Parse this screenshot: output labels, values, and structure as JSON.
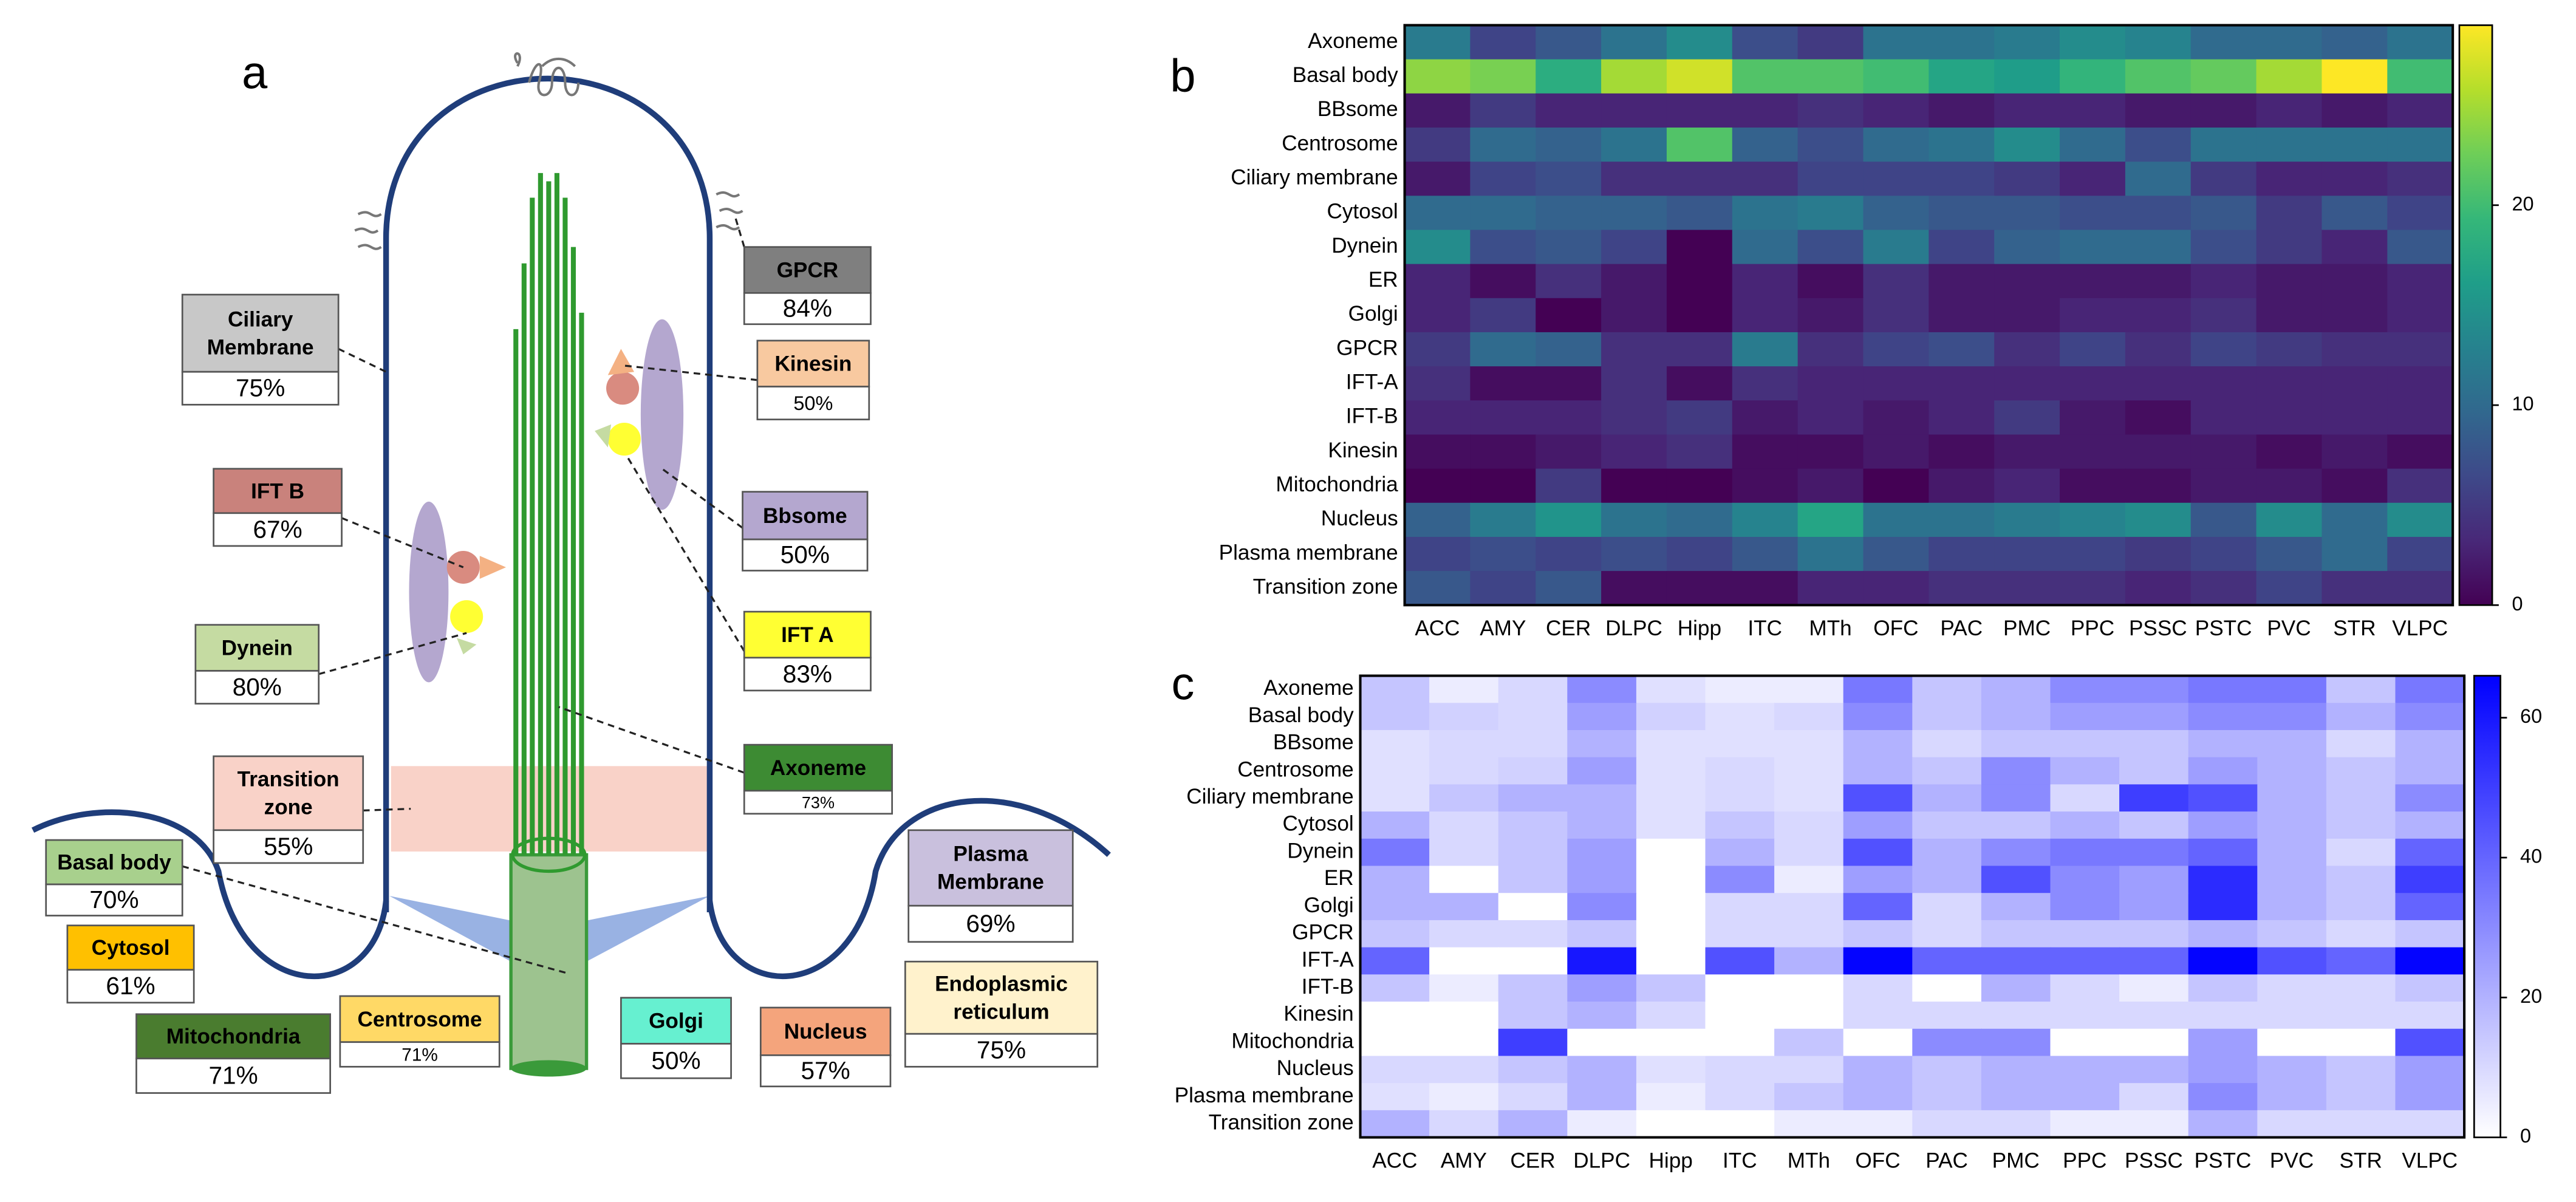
{
  "diagram": {
    "panel_label": "a",
    "labels": [
      {
        "name": "Ciliary Membrane",
        "percent": "75%",
        "color": "#c8c8c8"
      },
      {
        "name": "GPCR",
        "percent": "84%",
        "color": "#7f7f7f"
      },
      {
        "name": "Kinesin",
        "percent": "50%",
        "color": "#f8c9a0"
      },
      {
        "name": "IFT B",
        "percent": "67%",
        "color": "#c9827c"
      },
      {
        "name": "Bbsome",
        "percent": "50%",
        "color": "#b4a7cf"
      },
      {
        "name": "Dynein",
        "percent": "80%",
        "color": "#c5dba2"
      },
      {
        "name": "IFT A",
        "percent": "83%",
        "color": "#ffff33"
      },
      {
        "name": "Axoneme",
        "percent": "73%",
        "color": "#3d8b33"
      },
      {
        "name": "Transition zone",
        "percent": "55%",
        "color": "#f9d2c8"
      },
      {
        "name": "Basal body",
        "percent": "70%",
        "color": "#a8d08d"
      },
      {
        "name": "Cytosol",
        "percent": "61%",
        "color": "#ffc000"
      },
      {
        "name": "Plasma Membrane",
        "percent": "69%",
        "color": "#c9c0dd"
      },
      {
        "name": "Mitochondria",
        "percent": "71%",
        "color": "#4a7c2f"
      },
      {
        "name": "Centrosome",
        "percent": "71%",
        "color": "#ffd966"
      },
      {
        "name": "Golgi",
        "percent": "50%",
        "color": "#66f0d0"
      },
      {
        "name": "Nucleus",
        "percent": "57%",
        "color": "#f4a47c"
      },
      {
        "name": "Endoplasmic reticulum",
        "percent": "75%",
        "color": "#fff2cc"
      }
    ]
  },
  "chart_data": [
    {
      "type": "heatmap",
      "panel_label": "b",
      "colormap": "viridis",
      "zlim": [
        0,
        29
      ],
      "zticks": [
        0,
        10,
        20
      ],
      "x": [
        "ACC",
        "AMY",
        "CER",
        "DLPC",
        "Hipp",
        "ITC",
        "MTh",
        "OFC",
        "PAC",
        "PMC",
        "PPC",
        "PSSC",
        "PSTC",
        "PVC",
        "STR",
        "VLPC"
      ],
      "y": [
        "Axoneme",
        "Basal body",
        "BBsome",
        "Centrosome",
        "Ciliary membrane",
        "Cytosol",
        "Dynein",
        "ER",
        "Golgi",
        "GPCR",
        "IFT-A",
        "IFT-B",
        "Kinesin",
        "Mitochondria",
        "Nucleus",
        "Plasma membrane",
        "Transition zone"
      ],
      "values": [
        [
          12,
          6,
          8,
          11,
          14,
          7,
          5,
          11,
          11,
          12,
          14,
          13,
          10,
          10,
          9,
          11
        ],
        [
          24,
          23,
          18,
          25,
          27,
          21,
          21,
          20,
          17,
          16,
          19,
          21,
          22,
          25,
          29,
          20
        ],
        [
          2,
          5,
          3,
          3,
          3,
          3,
          4,
          3,
          2,
          3,
          3,
          2,
          2,
          3,
          2,
          3
        ],
        [
          5,
          10,
          9,
          11,
          21,
          9,
          7,
          10,
          11,
          14,
          10,
          7,
          11,
          11,
          11,
          11
        ],
        [
          2,
          6,
          7,
          4,
          4,
          4,
          6,
          6,
          6,
          5,
          3,
          10,
          5,
          3,
          3,
          4
        ],
        [
          10,
          10,
          9,
          9,
          8,
          11,
          12,
          9,
          8,
          8,
          7,
          7,
          8,
          5,
          8,
          6
        ],
        [
          14,
          7,
          8,
          6,
          0,
          10,
          7,
          12,
          6,
          9,
          10,
          10,
          7,
          5,
          3,
          8
        ],
        [
          3,
          1,
          4,
          2,
          0,
          3,
          1,
          4,
          2,
          2,
          2,
          2,
          3,
          2,
          2,
          3
        ],
        [
          3,
          5,
          0,
          2,
          0,
          3,
          2,
          4,
          2,
          2,
          3,
          3,
          4,
          2,
          2,
          3
        ],
        [
          5,
          10,
          9,
          4,
          4,
          12,
          4,
          6,
          7,
          4,
          6,
          4,
          6,
          5,
          4,
          4
        ],
        [
          4,
          1,
          1,
          4,
          1,
          4,
          3,
          3,
          3,
          3,
          3,
          3,
          3,
          3,
          3,
          3
        ],
        [
          3,
          3,
          3,
          4,
          5,
          2,
          3,
          2,
          3,
          5,
          2,
          1,
          3,
          3,
          3,
          3
        ],
        [
          1,
          1,
          2,
          3,
          4,
          1,
          1,
          2,
          1,
          2,
          2,
          2,
          2,
          1,
          2,
          1
        ],
        [
          0,
          0,
          5,
          0,
          0,
          1,
          2,
          0,
          2,
          3,
          1,
          1,
          2,
          2,
          1,
          4
        ],
        [
          9,
          12,
          15,
          11,
          10,
          13,
          17,
          11,
          11,
          12,
          13,
          14,
          8,
          14,
          10,
          14
        ],
        [
          6,
          7,
          6,
          7,
          6,
          8,
          11,
          8,
          6,
          6,
          6,
          5,
          6,
          8,
          10,
          6
        ],
        [
          8,
          6,
          8,
          1,
          1,
          1,
          3,
          3,
          4,
          4,
          4,
          3,
          4,
          6,
          4,
          4
        ]
      ]
    },
    {
      "type": "heatmap",
      "panel_label": "c",
      "colormap": [
        "#ffffff",
        "#0000ff"
      ],
      "zlim": [
        0,
        66
      ],
      "zticks": [
        0,
        20,
        40,
        60
      ],
      "x": [
        "ACC",
        "AMY",
        "CER",
        "DLPC",
        "Hipp",
        "ITC",
        "MTh",
        "OFC",
        "PAC",
        "PMC",
        "PPC",
        "PSSC",
        "PSTC",
        "PVC",
        "STR",
        "VLPC"
      ],
      "y": [
        "Axoneme",
        "Basal body",
        "BBsome",
        "Centrosome",
        "Ciliary membrane",
        "Cytosol",
        "Dynein",
        "ER",
        "Golgi",
        "GPCR",
        "IFT-A",
        "IFT-B",
        "Kinesin",
        "Mitochondria",
        "Nucleus",
        "Plasma membrane",
        "Transition zone"
      ],
      "values": [
        [
          15,
          5,
          10,
          30,
          8,
          5,
          5,
          35,
          15,
          20,
          30,
          30,
          35,
          35,
          15,
          35
        ],
        [
          15,
          12,
          10,
          25,
          12,
          8,
          10,
          30,
          15,
          20,
          25,
          25,
          30,
          30,
          20,
          30
        ],
        [
          8,
          10,
          10,
          20,
          8,
          8,
          8,
          20,
          10,
          15,
          15,
          15,
          20,
          20,
          10,
          20
        ],
        [
          8,
          10,
          12,
          25,
          8,
          10,
          8,
          20,
          15,
          30,
          20,
          15,
          25,
          20,
          15,
          20
        ],
        [
          8,
          15,
          20,
          20,
          8,
          10,
          8,
          45,
          20,
          30,
          10,
          50,
          45,
          20,
          15,
          30
        ],
        [
          20,
          10,
          15,
          20,
          8,
          15,
          10,
          25,
          15,
          15,
          20,
          15,
          25,
          20,
          15,
          20
        ],
        [
          35,
          10,
          15,
          25,
          0,
          20,
          10,
          45,
          20,
          30,
          35,
          35,
          40,
          20,
          10,
          40
        ],
        [
          20,
          0,
          15,
          25,
          0,
          30,
          5,
          25,
          20,
          45,
          30,
          25,
          55,
          20,
          15,
          50
        ],
        [
          20,
          20,
          0,
          30,
          0,
          10,
          10,
          40,
          10,
          20,
          30,
          25,
          55,
          20,
          15,
          40
        ],
        [
          15,
          10,
          10,
          15,
          0,
          10,
          10,
          15,
          10,
          15,
          15,
          15,
          20,
          15,
          10,
          15
        ],
        [
          40,
          0,
          0,
          60,
          0,
          45,
          20,
          65,
          40,
          40,
          40,
          40,
          65,
          45,
          40,
          65
        ],
        [
          15,
          5,
          15,
          25,
          15,
          0,
          0,
          10,
          0,
          20,
          10,
          5,
          15,
          10,
          10,
          15
        ],
        [
          0,
          0,
          15,
          20,
          10,
          0,
          0,
          10,
          10,
          10,
          10,
          10,
          10,
          10,
          10,
          10
        ],
        [
          0,
          0,
          50,
          0,
          0,
          0,
          15,
          0,
          30,
          30,
          0,
          0,
          25,
          0,
          0,
          45
        ],
        [
          10,
          10,
          15,
          20,
          8,
          10,
          10,
          20,
          15,
          20,
          20,
          20,
          25,
          20,
          15,
          25
        ],
        [
          8,
          5,
          10,
          20,
          5,
          10,
          15,
          20,
          15,
          20,
          20,
          10,
          30,
          20,
          15,
          25
        ],
        [
          20,
          10,
          20,
          5,
          0,
          0,
          5,
          5,
          10,
          10,
          5,
          5,
          20,
          10,
          10,
          10
        ]
      ]
    }
  ]
}
